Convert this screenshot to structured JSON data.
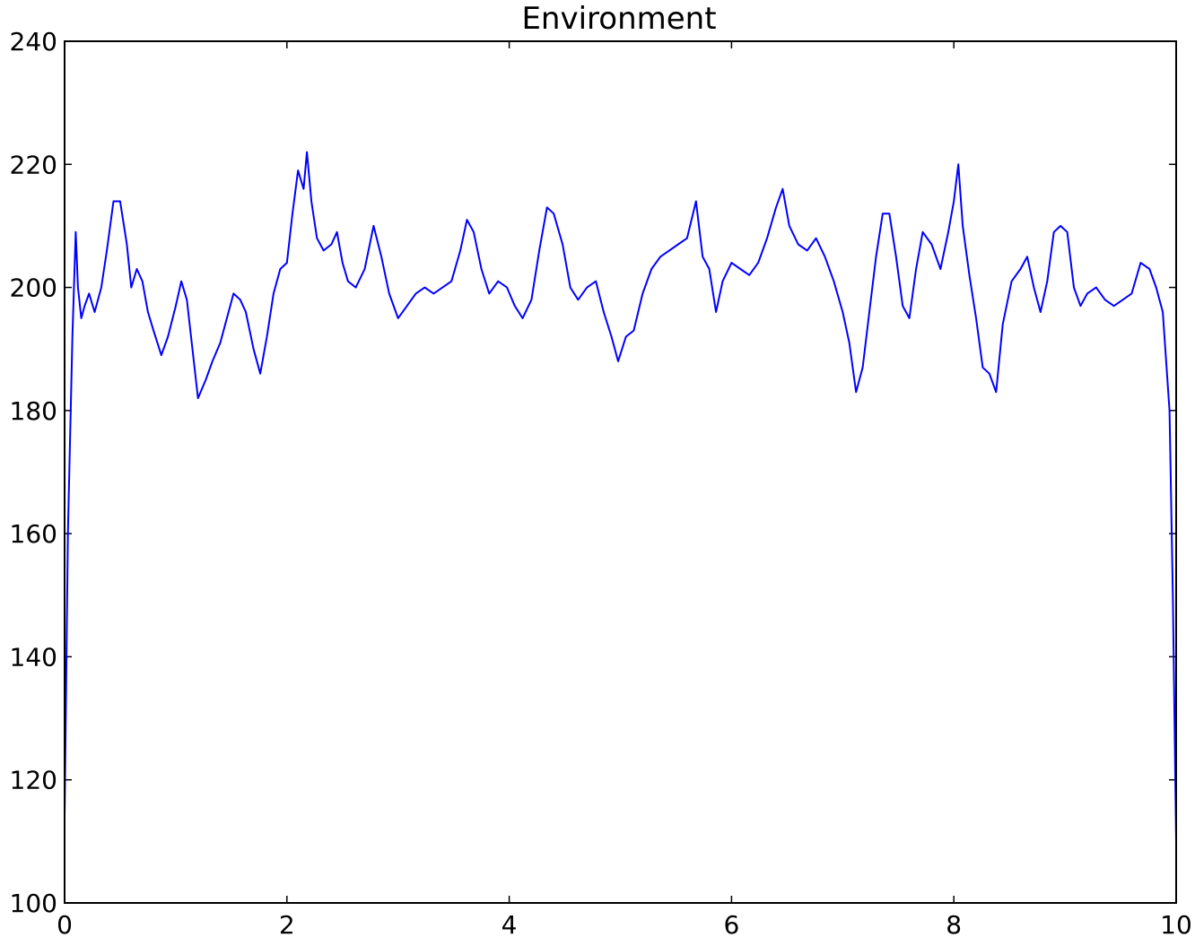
{
  "chart_data": {
    "type": "line",
    "title": "Environment",
    "xlabel": "",
    "ylabel": "",
    "xlim": [
      0,
      10
    ],
    "ylim": [
      100,
      240
    ],
    "xticks": [
      0,
      2,
      4,
      6,
      8,
      10
    ],
    "yticks": [
      100,
      120,
      140,
      160,
      180,
      200,
      220,
      240
    ],
    "x_tick_labels": [
      "0",
      "2",
      "4",
      "6",
      "8",
      "10"
    ],
    "y_tick_labels": [
      "100",
      "120",
      "140",
      "160",
      "180",
      "200",
      "220",
      "240"
    ],
    "grid": false,
    "legend": "none",
    "series": [
      {
        "color": "#0000ff",
        "points": [
          [
            0.0,
            114
          ],
          [
            0.03,
            160
          ],
          [
            0.07,
            192
          ],
          [
            0.1,
            209
          ],
          [
            0.12,
            200
          ],
          [
            0.15,
            195
          ],
          [
            0.18,
            197
          ],
          [
            0.22,
            199
          ],
          [
            0.27,
            196
          ],
          [
            0.33,
            200
          ],
          [
            0.38,
            206
          ],
          [
            0.44,
            214
          ],
          [
            0.5,
            214
          ],
          [
            0.56,
            207
          ],
          [
            0.6,
            200
          ],
          [
            0.65,
            203
          ],
          [
            0.7,
            201
          ],
          [
            0.75,
            196
          ],
          [
            0.8,
            193
          ],
          [
            0.87,
            189
          ],
          [
            0.93,
            192
          ],
          [
            1.0,
            197
          ],
          [
            1.05,
            201
          ],
          [
            1.1,
            198
          ],
          [
            1.15,
            190
          ],
          [
            1.2,
            182
          ],
          [
            1.27,
            185
          ],
          [
            1.33,
            188
          ],
          [
            1.4,
            191
          ],
          [
            1.46,
            195
          ],
          [
            1.52,
            199
          ],
          [
            1.58,
            198
          ],
          [
            1.63,
            196
          ],
          [
            1.7,
            190
          ],
          [
            1.76,
            186
          ],
          [
            1.82,
            192
          ],
          [
            1.88,
            199
          ],
          [
            1.94,
            203
          ],
          [
            2.0,
            204
          ],
          [
            2.05,
            212
          ],
          [
            2.1,
            219
          ],
          [
            2.15,
            216
          ],
          [
            2.18,
            222
          ],
          [
            2.22,
            214
          ],
          [
            2.27,
            208
          ],
          [
            2.33,
            206
          ],
          [
            2.4,
            207
          ],
          [
            2.45,
            209
          ],
          [
            2.5,
            204
          ],
          [
            2.55,
            201
          ],
          [
            2.62,
            200
          ],
          [
            2.7,
            203
          ],
          [
            2.78,
            210
          ],
          [
            2.85,
            205
          ],
          [
            2.92,
            199
          ],
          [
            3.0,
            195
          ],
          [
            3.08,
            197
          ],
          [
            3.16,
            199
          ],
          [
            3.24,
            200
          ],
          [
            3.32,
            199
          ],
          [
            3.4,
            200
          ],
          [
            3.48,
            201
          ],
          [
            3.56,
            206
          ],
          [
            3.62,
            211
          ],
          [
            3.68,
            209
          ],
          [
            3.75,
            203
          ],
          [
            3.82,
            199
          ],
          [
            3.9,
            201
          ],
          [
            3.98,
            200
          ],
          [
            4.05,
            197
          ],
          [
            4.12,
            195
          ],
          [
            4.2,
            198
          ],
          [
            4.27,
            206
          ],
          [
            4.34,
            213
          ],
          [
            4.4,
            212
          ],
          [
            4.48,
            207
          ],
          [
            4.55,
            200
          ],
          [
            4.62,
            198
          ],
          [
            4.7,
            200
          ],
          [
            4.78,
            201
          ],
          [
            4.85,
            196
          ],
          [
            4.92,
            192
          ],
          [
            4.98,
            188
          ],
          [
            5.05,
            192
          ],
          [
            5.12,
            193
          ],
          [
            5.2,
            199
          ],
          [
            5.28,
            203
          ],
          [
            5.36,
            205
          ],
          [
            5.44,
            206
          ],
          [
            5.52,
            207
          ],
          [
            5.6,
            208
          ],
          [
            5.68,
            214
          ],
          [
            5.74,
            205
          ],
          [
            5.8,
            203
          ],
          [
            5.86,
            196
          ],
          [
            5.92,
            201
          ],
          [
            6.0,
            204
          ],
          [
            6.08,
            203
          ],
          [
            6.16,
            202
          ],
          [
            6.24,
            204
          ],
          [
            6.32,
            208
          ],
          [
            6.4,
            213
          ],
          [
            6.46,
            216
          ],
          [
            6.52,
            210
          ],
          [
            6.6,
            207
          ],
          [
            6.68,
            206
          ],
          [
            6.76,
            208
          ],
          [
            6.84,
            205
          ],
          [
            6.92,
            201
          ],
          [
            7.0,
            196
          ],
          [
            7.06,
            191
          ],
          [
            7.12,
            183
          ],
          [
            7.18,
            187
          ],
          [
            7.24,
            196
          ],
          [
            7.3,
            205
          ],
          [
            7.36,
            212
          ],
          [
            7.42,
            212
          ],
          [
            7.48,
            205
          ],
          [
            7.54,
            197
          ],
          [
            7.6,
            195
          ],
          [
            7.66,
            203
          ],
          [
            7.72,
            209
          ],
          [
            7.8,
            207
          ],
          [
            7.88,
            203
          ],
          [
            7.95,
            209
          ],
          [
            8.0,
            214
          ],
          [
            8.04,
            220
          ],
          [
            8.08,
            210
          ],
          [
            8.14,
            202
          ],
          [
            8.2,
            195
          ],
          [
            8.26,
            187
          ],
          [
            8.32,
            186
          ],
          [
            8.38,
            183
          ],
          [
            8.44,
            194
          ],
          [
            8.52,
            201
          ],
          [
            8.6,
            203
          ],
          [
            8.66,
            205
          ],
          [
            8.72,
            200
          ],
          [
            8.78,
            196
          ],
          [
            8.84,
            201
          ],
          [
            8.9,
            209
          ],
          [
            8.96,
            210
          ],
          [
            9.02,
            209
          ],
          [
            9.08,
            200
          ],
          [
            9.14,
            197
          ],
          [
            9.2,
            199
          ],
          [
            9.28,
            200
          ],
          [
            9.36,
            198
          ],
          [
            9.44,
            197
          ],
          [
            9.52,
            198
          ],
          [
            9.6,
            199
          ],
          [
            9.68,
            204
          ],
          [
            9.76,
            203
          ],
          [
            9.82,
            200
          ],
          [
            9.88,
            196
          ],
          [
            9.94,
            180
          ],
          [
            9.97,
            150
          ],
          [
            10.0,
            110
          ]
        ]
      }
    ]
  }
}
